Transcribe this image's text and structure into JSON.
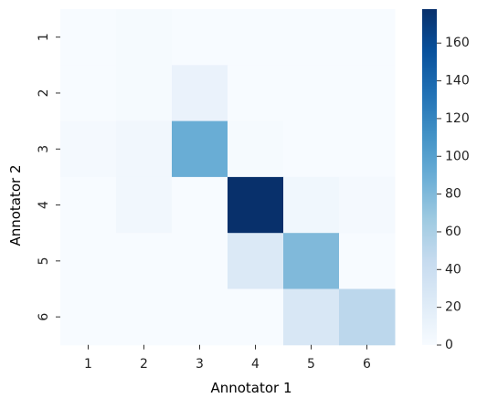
{
  "chart_data": {
    "type": "heatmap",
    "title": "",
    "xlabel": "Annotator 1",
    "ylabel": "Annotator 2",
    "x_categories": [
      "1",
      "2",
      "3",
      "4",
      "5",
      "6"
    ],
    "y_categories": [
      "1",
      "2",
      "3",
      "4",
      "5",
      "6"
    ],
    "values": [
      [
        0,
        2,
        0,
        0,
        0,
        0
      ],
      [
        0,
        2,
        12,
        0,
        0,
        0
      ],
      [
        3,
        5,
        90,
        2,
        0,
        0
      ],
      [
        0,
        5,
        0,
        178,
        6,
        3
      ],
      [
        0,
        0,
        0,
        25,
        80,
        0
      ],
      [
        0,
        0,
        0,
        0,
        28,
        50
      ]
    ],
    "colorscale": "Blues",
    "colorbar": {
      "min": 0,
      "max": 178,
      "ticks": [
        0,
        20,
        40,
        60,
        80,
        100,
        120,
        140,
        160
      ]
    },
    "grid": false
  }
}
